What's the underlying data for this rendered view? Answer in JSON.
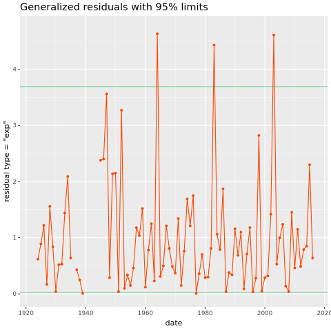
{
  "chart_data": {
    "type": "line",
    "title": "Generalized residuals with 95% limits",
    "xlabel": "date",
    "ylabel": "residual type = \"exp\"",
    "xlim": [
      1918,
      2021
    ],
    "ylim": [
      -0.23,
      4.95
    ],
    "xticks": [
      1920,
      1940,
      1960,
      1980,
      2000,
      2020
    ],
    "yticks": [
      0,
      1,
      2,
      3,
      4
    ],
    "grid": true,
    "colors": {
      "panel_background": "#ebebeb",
      "grid_major": "#ffffff",
      "series": "#ff4500",
      "reference_lines": "#66cc99",
      "text": "#000000",
      "tick_text": "#4d4d4d"
    },
    "reference_lines": [
      0.025,
      3.69
    ],
    "series": [
      {
        "segments": [
          [
            [
              1924,
              0.62
            ],
            [
              1925,
              0.89
            ],
            [
              1926,
              1.22
            ],
            [
              1927,
              0.17
            ],
            [
              1928,
              1.56
            ],
            [
              1929,
              0.84
            ],
            [
              1930,
              0.04
            ],
            [
              1931,
              0.52
            ],
            [
              1932,
              0.53
            ],
            [
              1933,
              1.44
            ],
            [
              1934,
              2.09
            ],
            [
              1935,
              0.64
            ]
          ],
          [
            [
              1937,
              0.43
            ],
            [
              1938,
              0.25
            ],
            [
              1939,
              0.01
            ]
          ],
          [
            [
              1945,
              2.38
            ],
            [
              1946,
              2.4
            ],
            [
              1947,
              3.56
            ],
            [
              1948,
              0.29
            ],
            [
              1949,
              2.14
            ],
            [
              1950,
              2.15
            ],
            [
              1951,
              0.04
            ],
            [
              1952,
              3.27
            ],
            [
              1953,
              0.1
            ],
            [
              1954,
              0.34
            ],
            [
              1955,
              0.15
            ],
            [
              1956,
              0.46
            ],
            [
              1957,
              1.18
            ],
            [
              1958,
              1.04
            ],
            [
              1959,
              1.52
            ],
            [
              1960,
              0.12
            ],
            [
              1961,
              0.78
            ],
            [
              1962,
              1.25
            ],
            [
              1963,
              0.23
            ],
            [
              1964,
              4.63
            ],
            [
              1965,
              0.31
            ],
            [
              1966,
              0.5
            ],
            [
              1967,
              1.21
            ],
            [
              1968,
              0.81
            ],
            [
              1969,
              0.49
            ],
            [
              1970,
              0.37
            ],
            [
              1971,
              1.34
            ],
            [
              1972,
              0.15
            ],
            [
              1973,
              0.76
            ],
            [
              1974,
              1.69
            ],
            [
              1975,
              1.21
            ],
            [
              1976,
              1.75
            ],
            [
              1977,
              0.01
            ],
            [
              1978,
              0.36
            ],
            [
              1979,
              0.7
            ],
            [
              1980,
              0.29
            ],
            [
              1981,
              0.3
            ],
            [
              1982,
              0.81
            ],
            [
              1983,
              4.43
            ],
            [
              1984,
              1.06
            ],
            [
              1985,
              0.79
            ],
            [
              1986,
              1.87
            ],
            [
              1987,
              0.04
            ],
            [
              1988,
              0.38
            ],
            [
              1989,
              0.34
            ],
            [
              1990,
              1.16
            ],
            [
              1991,
              0.69
            ],
            [
              1992,
              1.1
            ],
            [
              1993,
              0.09
            ],
            [
              1994,
              0.71
            ],
            [
              1995,
              1.18
            ],
            [
              1996,
              0.04
            ],
            [
              1997,
              0.28
            ],
            [
              1998,
              2.82
            ],
            [
              1999,
              0.05
            ],
            [
              2000,
              0.29
            ],
            [
              2001,
              0.32
            ],
            [
              2002,
              1.42
            ],
            [
              2003,
              4.61
            ],
            [
              2004,
              0.53
            ],
            [
              2005,
              1.0
            ],
            [
              2006,
              1.24
            ],
            [
              2007,
              0.14
            ],
            [
              2008,
              0.04
            ],
            [
              2009,
              1.45
            ],
            [
              2010,
              0.46
            ],
            [
              2011,
              1.15
            ],
            [
              2012,
              0.49
            ],
            [
              2013,
              0.79
            ],
            [
              2014,
              0.85
            ],
            [
              2015,
              2.3
            ],
            [
              2016,
              0.64
            ]
          ]
        ]
      }
    ]
  }
}
